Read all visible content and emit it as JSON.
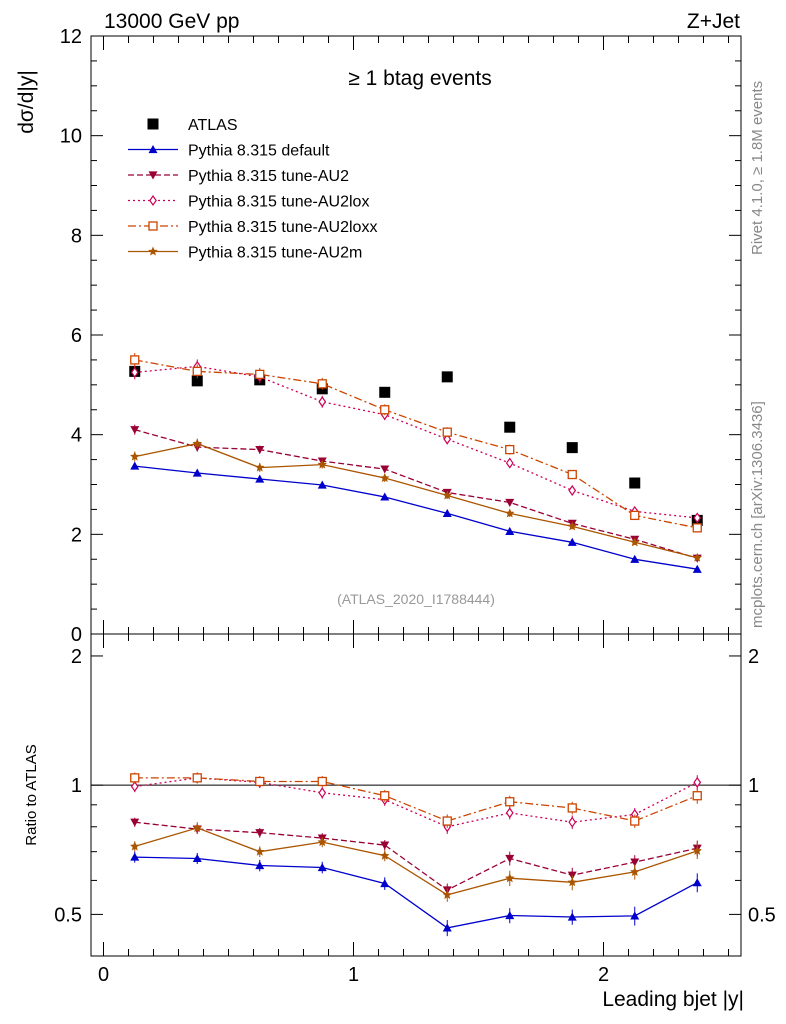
{
  "header": {
    "left": "13000 GeV pp",
    "right": "Z+Jet"
  },
  "side": {
    "rivet": "Rivet 4.1.0, ≥ 1.8M events",
    "mcplots": "mcplots.cern.ch [arXiv:1306.3436]"
  },
  "chart_data": [
    {
      "type": "line",
      "title": "≥ 1 btag events",
      "ylabel": "dσ/d|y|",
      "xlabel": "",
      "xlim": [
        -0.05,
        2.55
      ],
      "ylim": [
        0,
        12
      ],
      "y_ticks": [
        0,
        2,
        4,
        6,
        8,
        10,
        12
      ],
      "y_tick_labels": [
        "0",
        "2",
        "4",
        "6",
        "8",
        "10",
        "12"
      ],
      "analysis": "(ATLAS_2020_I1788444)",
      "legend_position": "top-left",
      "x": [
        0.125,
        0.375,
        0.625,
        0.875,
        1.125,
        1.375,
        1.625,
        1.875,
        2.125,
        2.375
      ],
      "series": [
        {
          "name": "ATLAS",
          "color": "#000000",
          "marker": "square-filled",
          "line": "none",
          "values": [
            5.27,
            5.08,
            5.1,
            4.92,
            4.85,
            5.16,
            4.15,
            3.74,
            3.03,
            2.28
          ]
        },
        {
          "name": "Pythia 8.315 default",
          "color": "#0000cc",
          "marker": "triangle-up",
          "line": "solid",
          "values": [
            3.37,
            3.23,
            3.11,
            2.99,
            2.75,
            2.42,
            2.06,
            1.84,
            1.5,
            1.3
          ],
          "errors": [
            0.06,
            0.06,
            0.05,
            0.05,
            0.05,
            0.05,
            0.04,
            0.04,
            0.04,
            0.03
          ]
        },
        {
          "name": "Pythia 8.315 tune-AU2",
          "color": "#990033",
          "marker": "triangle-down",
          "line": "dashed",
          "values": [
            4.1,
            3.75,
            3.7,
            3.47,
            3.31,
            2.84,
            2.64,
            2.22,
            1.9,
            1.52
          ],
          "errors": [
            0.1,
            0.09,
            0.08,
            0.07,
            0.07,
            0.06,
            0.06,
            0.05,
            0.05,
            0.04
          ]
        },
        {
          "name": "Pythia 8.315 tune-AU2lox",
          "color": "#cc0055",
          "marker": "diamond-open",
          "line": "dotted",
          "values": [
            5.25,
            5.37,
            5.16,
            4.66,
            4.4,
            3.91,
            3.43,
            2.88,
            2.46,
            2.33
          ],
          "errors": [
            0.14,
            0.14,
            0.13,
            0.12,
            0.11,
            0.1,
            0.09,
            0.08,
            0.08,
            0.07
          ]
        },
        {
          "name": "Pythia 8.315 tune-AU2loxx",
          "color": "#cc4400",
          "marker": "square-open",
          "line": "dashdot",
          "values": [
            5.5,
            5.27,
            5.21,
            5.02,
            4.5,
            4.05,
            3.7,
            3.2,
            2.38,
            2.13
          ],
          "errors": [
            0.14,
            0.14,
            0.13,
            0.12,
            0.11,
            0.1,
            0.1,
            0.09,
            0.08,
            0.07
          ]
        },
        {
          "name": "Pythia 8.315 tune-AU2m",
          "color": "#aa5500",
          "marker": "star",
          "line": "solid",
          "values": [
            3.56,
            3.82,
            3.34,
            3.4,
            3.13,
            2.78,
            2.42,
            2.16,
            1.84,
            1.53
          ],
          "errors": [
            0.1,
            0.1,
            0.09,
            0.08,
            0.08,
            0.07,
            0.07,
            0.06,
            0.05,
            0.05
          ]
        }
      ]
    },
    {
      "type": "line",
      "title": "",
      "ylabel": "Ratio to ATLAS",
      "xlabel": "Leading bjet |y|",
      "xlim": [
        -0.05,
        2.55
      ],
      "ylim": [
        0.4,
        2.25
      ],
      "log_y": true,
      "reference_line": 1,
      "y_ticks": [
        0.5,
        1,
        2
      ],
      "y_tick_labels": [
        "0.5",
        "1",
        "2"
      ],
      "x_ticks": [
        0,
        1,
        2
      ],
      "x_tick_labels": [
        "0",
        "1",
        "2"
      ],
      "x": [
        0.125,
        0.375,
        0.625,
        0.875,
        1.125,
        1.375,
        1.625,
        1.875,
        2.125,
        2.375
      ],
      "series": [
        {
          "name": "Pythia 8.315 default",
          "color": "#0000cc",
          "marker": "triangle-up",
          "line": "solid",
          "values": [
            0.68,
            0.675,
            0.65,
            0.643,
            0.59,
            0.465,
            0.497,
            0.493,
            0.496,
            0.593
          ],
          "errors": [
            0.02,
            0.02,
            0.02,
            0.02,
            0.02,
            0.02,
            0.02,
            0.02,
            0.025,
            0.03
          ]
        },
        {
          "name": "Pythia 8.315 tune-AU2",
          "color": "#990033",
          "marker": "triangle-down",
          "line": "dashed",
          "values": [
            0.82,
            0.79,
            0.775,
            0.753,
            0.725,
            0.57,
            0.675,
            0.617,
            0.662,
            0.713
          ],
          "errors": [
            0.02,
            0.02,
            0.02,
            0.02,
            0.02,
            0.02,
            0.025,
            0.025,
            0.025,
            0.03
          ]
        },
        {
          "name": "Pythia 8.315 tune-AU2lox",
          "color": "#cc0055",
          "marker": "diamond-open",
          "line": "dotted",
          "values": [
            0.993,
            1.04,
            1.015,
            0.96,
            0.925,
            0.8,
            0.862,
            0.82,
            0.855,
            1.015
          ],
          "errors": [
            0.03,
            0.03,
            0.03,
            0.03,
            0.03,
            0.03,
            0.03,
            0.03,
            0.03,
            0.04
          ]
        },
        {
          "name": "Pythia 8.315 tune-AU2loxx",
          "color": "#cc4400",
          "marker": "square-open",
          "line": "dashdot",
          "values": [
            1.04,
            1.04,
            1.02,
            1.02,
            0.945,
            0.825,
            0.915,
            0.885,
            0.825,
            0.945
          ],
          "errors": [
            0.03,
            0.03,
            0.03,
            0.03,
            0.03,
            0.03,
            0.03,
            0.03,
            0.03,
            0.04
          ]
        },
        {
          "name": "Pythia 8.315 tune-AU2m",
          "color": "#aa5500",
          "marker": "star",
          "line": "solid",
          "values": [
            0.72,
            0.795,
            0.7,
            0.737,
            0.685,
            0.555,
            0.607,
            0.594,
            0.628,
            0.703
          ],
          "errors": [
            0.02,
            0.025,
            0.02,
            0.02,
            0.02,
            0.02,
            0.025,
            0.025,
            0.025,
            0.03
          ]
        }
      ]
    }
  ]
}
